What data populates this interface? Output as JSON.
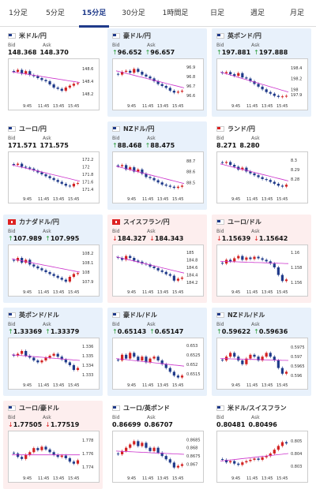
{
  "tabs": [
    {
      "label": "1分足",
      "active": false
    },
    {
      "label": "5分足",
      "active": false
    },
    {
      "label": "15分足",
      "active": true
    },
    {
      "label": "30分足",
      "active": false
    },
    {
      "label": "1時間足",
      "active": false
    },
    {
      "label": "日足",
      "active": false
    },
    {
      "label": "週足",
      "active": false
    },
    {
      "label": "月足",
      "active": false
    }
  ],
  "bid_label": "Bid",
  "ask_label": "Ask",
  "colors": {
    "active_tab": "#1f3a8a",
    "up_bg": "#e8f1fb",
    "down_bg": "#fdeeee",
    "bull": "#d22222",
    "bear": "#1f3a8a",
    "ma": "#cc33cc",
    "up_arrow": "#2a9d3a",
    "down_arrow": "#d22222"
  },
  "cards": [
    {
      "name": "米ドル/円",
      "flag": "us",
      "bid": "148.368",
      "ask": "148.370",
      "arrow": "",
      "bg": "flat",
      "y_ticks": [
        "148.6",
        "148.4",
        "148.2"
      ],
      "x_ticks": [
        "9:45",
        "11:45",
        "13:45",
        "15:45"
      ],
      "ylim": [
        148.1,
        148.7
      ],
      "trend": [
        148.55,
        148.58,
        148.52,
        148.56,
        148.5,
        148.48,
        148.45,
        148.42,
        148.4,
        148.35,
        148.3,
        148.28,
        148.25,
        148.3,
        148.33,
        148.36,
        148.37
      ],
      "ma_start": 148.55,
      "ma_end": 148.38
    },
    {
      "name": "豪ドル/円",
      "flag": "au",
      "bid": "96.652",
      "ask": "96.657",
      "arrow": "up",
      "bg": "up",
      "y_ticks": [
        "96.9",
        "96.8",
        "96.7",
        "96.6"
      ],
      "x_ticks": [
        "9:45",
        "11:45",
        "13:45",
        "15:45"
      ],
      "ylim": [
        96.55,
        96.95
      ],
      "trend": [
        96.82,
        96.85,
        96.86,
        96.84,
        96.88,
        96.85,
        96.82,
        96.8,
        96.78,
        96.75,
        96.72,
        96.7,
        96.68,
        96.65,
        96.63,
        96.64,
        96.65
      ],
      "ma_start": 96.86,
      "ma_end": 96.68
    },
    {
      "name": "英ポンド/円",
      "flag": "gb",
      "bid": "197.881",
      "ask": "197.888",
      "arrow": "up",
      "bg": "up",
      "y_ticks": [
        "198.4",
        "198.2",
        "198",
        "197.9"
      ],
      "x_ticks": [
        "9:45",
        "11:45",
        "13:45",
        "15:45"
      ],
      "ylim": [
        197.8,
        198.5
      ],
      "trend": [
        198.3,
        198.32,
        198.28,
        198.25,
        198.3,
        198.22,
        198.2,
        198.15,
        198.1,
        198.05,
        198.0,
        197.95,
        197.92,
        197.88,
        197.86,
        197.87,
        197.88
      ],
      "ma_start": 198.32,
      "ma_end": 197.95
    },
    {
      "name": "ユーロ/円",
      "flag": "eu",
      "bid": "171.571",
      "ask": "171.575",
      "arrow": "",
      "bg": "flat",
      "y_ticks": [
        "172.2",
        "172",
        "171.8",
        "171.6",
        "171.4"
      ],
      "x_ticks": [
        "9:45",
        "11:45",
        "13:45",
        "15:45"
      ],
      "ylim": [
        171.3,
        172.3
      ],
      "trend": [
        172.05,
        172.08,
        172.0,
        171.98,
        171.95,
        171.9,
        171.85,
        171.8,
        171.75,
        171.7,
        171.65,
        171.6,
        171.55,
        171.5,
        171.48,
        171.55,
        171.57
      ],
      "ma_start": 172.05,
      "ma_end": 171.62
    },
    {
      "name": "NZドル/円",
      "flag": "nz",
      "bid": "88.468",
      "ask": "88.475",
      "arrow": "up",
      "bg": "up",
      "y_ticks": [
        "88.7",
        "88.6",
        "88.5"
      ],
      "x_ticks": [
        "9:45",
        "11:45",
        "13:45",
        "15:45"
      ],
      "ylim": [
        88.4,
        88.75
      ],
      "trend": [
        88.65,
        88.66,
        88.62,
        88.64,
        88.6,
        88.62,
        88.58,
        88.55,
        88.54,
        88.52,
        88.5,
        88.48,
        88.47,
        88.46,
        88.45,
        88.46,
        88.47
      ],
      "ma_start": 88.65,
      "ma_end": 88.49
    },
    {
      "name": "ランド/円",
      "flag": "za",
      "bid": "8.271",
      "ask": "8.280",
      "arrow": "",
      "bg": "flat",
      "y_ticks": [
        "8.3",
        "8.29",
        "8.28"
      ],
      "x_ticks": [
        "9:45",
        "11:45",
        "13:45",
        "15:45"
      ],
      "ylim": [
        8.265,
        8.305
      ],
      "trend": [
        8.297,
        8.298,
        8.295,
        8.293,
        8.29,
        8.292,
        8.288,
        8.286,
        8.284,
        8.282,
        8.28,
        8.279,
        8.277,
        8.275,
        8.273,
        8.272,
        8.274
      ],
      "ma_start": 8.296,
      "ma_end": 8.278
    },
    {
      "name": "カナダドル/円",
      "flag": "ca",
      "bid": "107.989",
      "ask": "107.995",
      "arrow": "up",
      "bg": "up",
      "y_ticks": [
        "108.2",
        "108.1",
        "108",
        "107.9"
      ],
      "x_ticks": [
        "9:45",
        "11:45",
        "13:45",
        "15:45"
      ],
      "ylim": [
        107.85,
        108.25
      ],
      "trend": [
        108.12,
        108.15,
        108.1,
        108.13,
        108.08,
        108.06,
        108.04,
        108.02,
        108.0,
        107.98,
        107.96,
        107.94,
        107.92,
        107.9,
        107.95,
        107.98,
        107.99
      ],
      "ma_start": 108.14,
      "ma_end": 108.0
    },
    {
      "name": "スイスフラン/円",
      "flag": "ch",
      "bid": "184.327",
      "ask": "184.343",
      "arrow": "down",
      "bg": "down",
      "y_ticks": [
        "185",
        "184.8",
        "184.6",
        "184.4",
        "184.2"
      ],
      "x_ticks": [
        "9:45",
        "11:45",
        "13:45",
        "15:45"
      ],
      "ylim": [
        184.1,
        185.1
      ],
      "trend": [
        184.85,
        184.8,
        184.9,
        184.85,
        184.78,
        184.75,
        184.7,
        184.68,
        184.62,
        184.58,
        184.52,
        184.48,
        184.42,
        184.38,
        184.25,
        184.3,
        184.33
      ],
      "ma_start": 184.88,
      "ma_end": 184.45
    },
    {
      "name": "ユーロ/ドル",
      "flag": "eu",
      "bid": "1.15639",
      "ask": "1.15642",
      "arrow": "down",
      "bg": "down",
      "y_ticks": [
        "1.16",
        "1.158",
        "1.156"
      ],
      "x_ticks": [
        "9:45",
        "11:45",
        "13:45",
        "15:45"
      ],
      "ylim": [
        1.1555,
        1.1605
      ],
      "trend": [
        1.1585,
        1.159,
        1.1588,
        1.1592,
        1.1595,
        1.159,
        1.1593,
        1.1591,
        1.1594,
        1.1592,
        1.159,
        1.1588,
        1.1585,
        1.158,
        1.157,
        1.1562,
        1.1564
      ],
      "ma_start": 1.1588,
      "ma_end": 1.1585
    },
    {
      "name": "英ポンド/ドル",
      "flag": "gb",
      "bid": "1.33369",
      "ask": "1.33379",
      "arrow": "up",
      "bg": "up",
      "y_ticks": [
        "1.336",
        "1.335",
        "1.334",
        "1.333"
      ],
      "x_ticks": [
        "9:45",
        "11:45",
        "13:45",
        "15:45"
      ],
      "ylim": [
        1.3325,
        1.3365
      ],
      "trend": [
        1.335,
        1.3352,
        1.3355,
        1.335,
        1.3348,
        1.3345,
        1.3343,
        1.3345,
        1.3348,
        1.335,
        1.3352,
        1.3349,
        1.3346,
        1.3343,
        1.334,
        1.3335,
        1.3337
      ],
      "ma_start": 1.3351,
      "ma_end": 1.3345
    },
    {
      "name": "豪ドル/ドル",
      "flag": "au",
      "bid": "0.65143",
      "ask": "0.65147",
      "arrow": "up",
      "bg": "up",
      "y_ticks": [
        "0.653",
        "0.6525",
        "0.652",
        "0.6515"
      ],
      "x_ticks": [
        "9:45",
        "11:45",
        "13:45",
        "15:45"
      ],
      "ylim": [
        0.6512,
        0.6532
      ],
      "trend": [
        0.6522,
        0.6525,
        0.6523,
        0.6526,
        0.6524,
        0.6522,
        0.6524,
        0.6521,
        0.6523,
        0.6524,
        0.6522,
        0.652,
        0.6518,
        0.6516,
        0.6514,
        0.6513,
        0.6514
      ],
      "ma_start": 0.6523,
      "ma_end": 0.6519
    },
    {
      "name": "NZドル/ドル",
      "flag": "nz",
      "bid": "0.59622",
      "ask": "0.59636",
      "arrow": "up",
      "bg": "up",
      "y_ticks": [
        "0.5975",
        "0.597",
        "0.5965",
        "0.596"
      ],
      "x_ticks": [
        "9:45",
        "11:45",
        "13:45",
        "15:45"
      ],
      "ylim": [
        0.5958,
        0.5978
      ],
      "trend": [
        0.5968,
        0.597,
        0.5972,
        0.597,
        0.5968,
        0.5966,
        0.5969,
        0.5971,
        0.597,
        0.5968,
        0.597,
        0.5972,
        0.597,
        0.5968,
        0.5964,
        0.5961,
        0.5962
      ],
      "ma_start": 0.5969,
      "ma_end": 0.5968
    },
    {
      "name": "ユーロ/豪ドル",
      "flag": "eu",
      "bid": "1.77505",
      "ask": "1.77519",
      "arrow": "down",
      "bg": "down",
      "y_ticks": [
        "1.778",
        "1.776",
        "1.774"
      ],
      "x_ticks": [
        "9:45",
        "11:45",
        "13:45",
        "15:45"
      ],
      "ylim": [
        1.7732,
        1.7788
      ],
      "trend": [
        1.776,
        1.7755,
        1.7752,
        1.7758,
        1.7762,
        1.7768,
        1.7765,
        1.777,
        1.7766,
        1.7762,
        1.7758,
        1.7755,
        1.7757,
        1.7753,
        1.7748,
        1.7745,
        1.775
      ],
      "ma_start": 1.7758,
      "ma_end": 1.7758
    },
    {
      "name": "ユーロ/英ポンド",
      "flag": "eu",
      "bid": "0.86699",
      "ask": "0.86707",
      "arrow": "",
      "bg": "flat",
      "y_ticks": [
        "0.8685",
        "0.868",
        "0.8675",
        "0.867"
      ],
      "x_ticks": [
        "9:45",
        "11:45",
        "13:45",
        "15:45"
      ],
      "ylim": [
        0.8665,
        0.8688
      ],
      "trend": [
        0.8676,
        0.8678,
        0.868,
        0.8682,
        0.8684,
        0.8681,
        0.8683,
        0.868,
        0.8678,
        0.868,
        0.8677,
        0.8675,
        0.8673,
        0.8671,
        0.8668,
        0.8669,
        0.867
      ],
      "ma_start": 0.8678,
      "ma_end": 0.8676
    },
    {
      "name": "米ドル/スイスフラン",
      "flag": "us",
      "bid": "0.80481",
      "ask": "0.80496",
      "arrow": "",
      "bg": "flat",
      "y_ticks": [
        "0.805",
        "0.804",
        "0.803"
      ],
      "x_ticks": [
        "9:45",
        "11:45",
        "13:45",
        "15:45"
      ],
      "ylim": [
        0.8025,
        0.8055
      ],
      "trend": [
        0.8035,
        0.8033,
        0.8034,
        0.8032,
        0.8031,
        0.8033,
        0.8034,
        0.8035,
        0.8036,
        0.8035,
        0.8037,
        0.8038,
        0.804,
        0.8043,
        0.8046,
        0.8049,
        0.8048
      ],
      "ma_start": 0.8034,
      "ma_end": 0.804
    }
  ]
}
